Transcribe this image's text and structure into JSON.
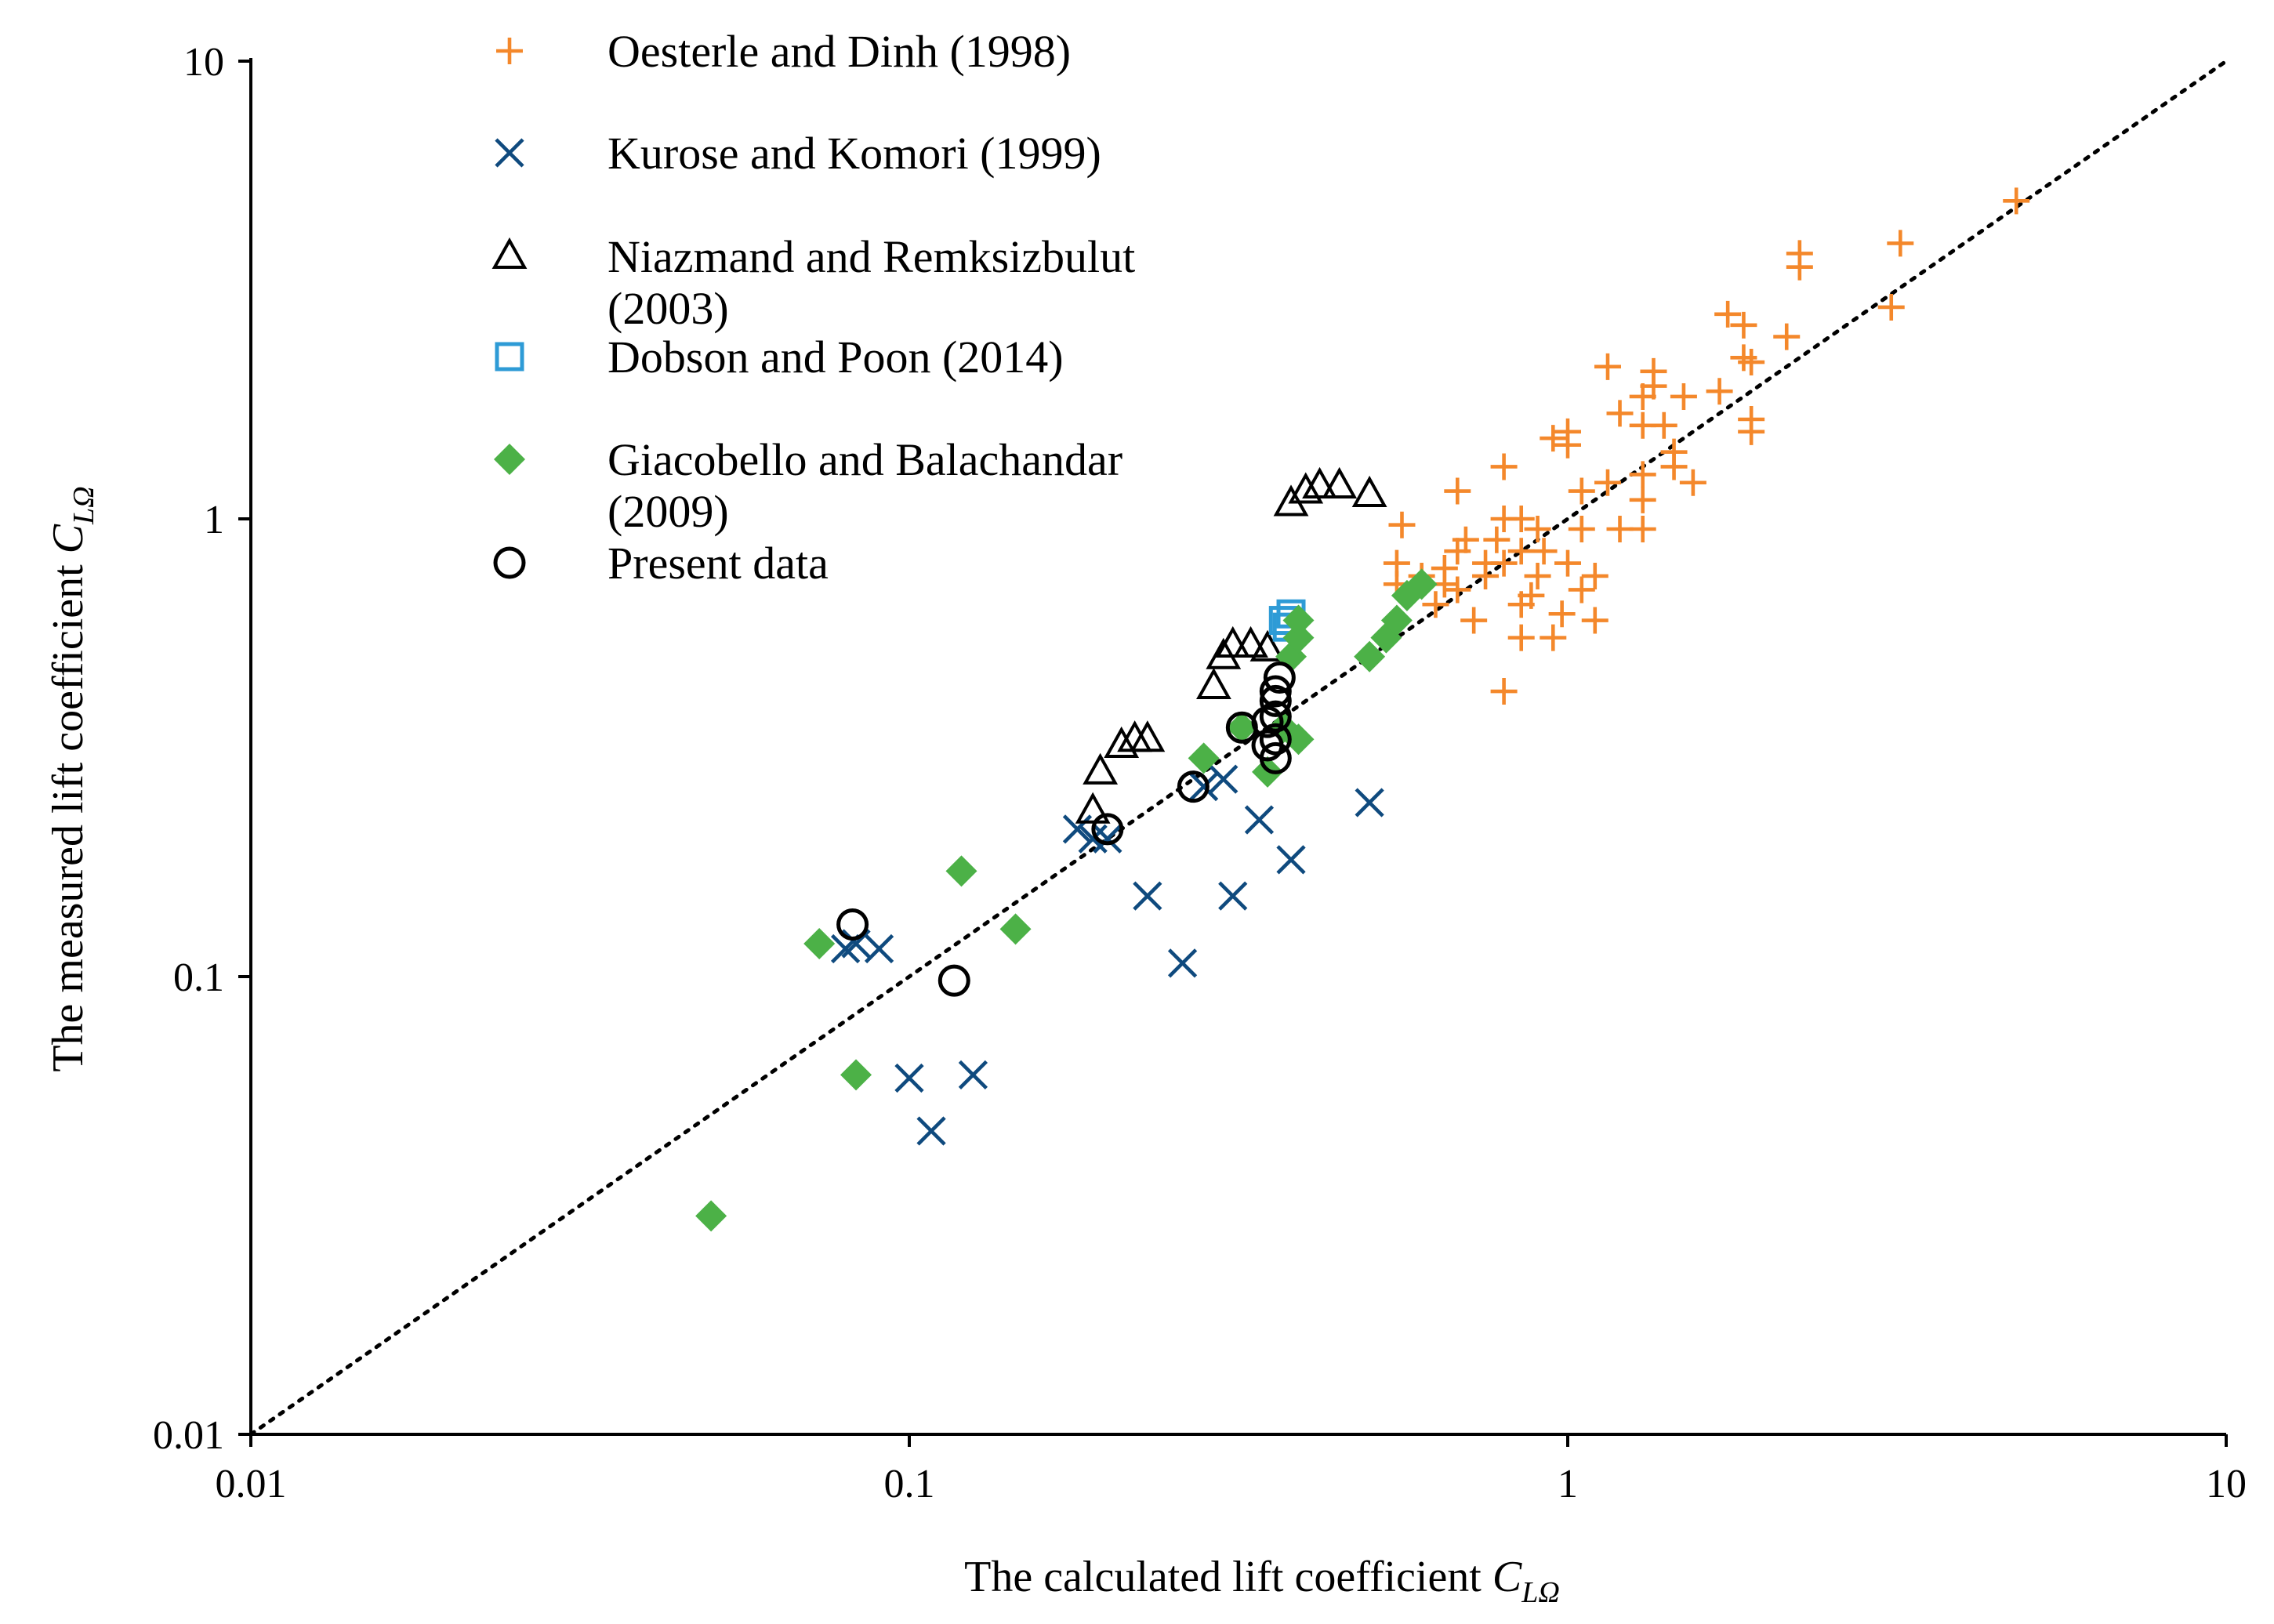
{
  "chart_data": {
    "type": "scatter",
    "xscale": "log",
    "yscale": "log",
    "xlim": [
      0.01,
      10
    ],
    "ylim": [
      0.01,
      10
    ],
    "x_ticks": [
      "0.01",
      "0.1",
      "1",
      "10"
    ],
    "y_ticks": [
      "0.01",
      "0.1",
      "1",
      "10"
    ],
    "xlabel_main": "The calculated  lift coefficient ",
    "xlabel_symbol": "C",
    "xlabel_sub": "LΩ",
    "ylabel_main": "The measured lift coefficient ",
    "ylabel_symbol": "C",
    "ylabel_sub": "LΩ",
    "reference_line": "y = x (dotted)",
    "colors": {
      "orange": "#F4882B",
      "navy": "#0F4A7E",
      "black": "#000000",
      "cyan": "#2E9BD6",
      "green": "#4CB147"
    },
    "series": [
      {
        "name": "Oesterle and Dinh (1998)",
        "marker": "plus",
        "color": "#F4882B",
        "points": [
          [
            4.8,
            4.95
          ],
          [
            3.2,
            4.0
          ],
          [
            3.1,
            2.9
          ],
          [
            2.25,
            3.55
          ],
          [
            2.25,
            3.8
          ],
          [
            2.15,
            2.5
          ],
          [
            1.75,
            2.8
          ],
          [
            1.85,
            2.65
          ],
          [
            1.7,
            1.9
          ],
          [
            1.85,
            2.25
          ],
          [
            1.9,
            2.2
          ],
          [
            1.9,
            1.55
          ],
          [
            1.9,
            1.65
          ],
          [
            1.5,
            1.85
          ],
          [
            1.55,
            1.2
          ],
          [
            1.45,
            1.4
          ],
          [
            1.45,
            1.3
          ],
          [
            1.4,
            1.6
          ],
          [
            1.35,
            2.1
          ],
          [
            1.35,
            1.95
          ],
          [
            1.3,
            1.6
          ],
          [
            1.3,
            1.85
          ],
          [
            1.3,
            1.25
          ],
          [
            1.3,
            1.1
          ],
          [
            1.3,
            0.95
          ],
          [
            1.2,
            1.7
          ],
          [
            1.2,
            0.95
          ],
          [
            1.15,
            1.2
          ],
          [
            1.15,
            2.15
          ],
          [
            1.05,
            1.15
          ],
          [
            1.05,
            0.95
          ],
          [
            1.0,
            1.45
          ],
          [
            1.0,
            1.55
          ],
          [
            0.95,
            1.5
          ],
          [
            1.1,
            0.75
          ],
          [
            1.05,
            0.7
          ],
          [
            1.1,
            0.6
          ],
          [
            1.0,
            0.8
          ],
          [
            0.98,
            0.62
          ],
          [
            0.95,
            0.55
          ],
          [
            0.92,
            0.85
          ],
          [
            0.9,
            0.75
          ],
          [
            0.88,
            0.68
          ],
          [
            0.85,
            0.65
          ],
          [
            0.85,
            0.55
          ],
          [
            0.9,
            0.95
          ],
          [
            0.85,
            1.0
          ],
          [
            0.85,
            0.85
          ],
          [
            0.8,
            1.0
          ],
          [
            0.8,
            1.3
          ],
          [
            0.8,
            0.8
          ],
          [
            0.78,
            0.9
          ],
          [
            0.75,
            0.8
          ],
          [
            0.75,
            0.75
          ],
          [
            0.72,
            0.6
          ],
          [
            0.7,
            0.9
          ],
          [
            0.68,
            0.85
          ],
          [
            0.68,
            0.7
          ],
          [
            0.65,
            0.78
          ],
          [
            0.65,
            0.72
          ],
          [
            0.63,
            0.65
          ],
          [
            0.6,
            0.75
          ],
          [
            0.56,
            0.97
          ],
          [
            0.55,
            0.8
          ],
          [
            0.55,
            0.72
          ],
          [
            0.68,
            1.15
          ],
          [
            0.8,
            0.42
          ]
        ]
      },
      {
        "name": "Kurose and Komori (1999)",
        "marker": "x",
        "color": "#0F4A7E",
        "points": [
          [
            0.08,
            0.115
          ],
          [
            0.083,
            0.118
          ],
          [
            0.09,
            0.115
          ],
          [
            0.1,
            0.06
          ],
          [
            0.108,
            0.046
          ],
          [
            0.125,
            0.061
          ],
          [
            0.18,
            0.21
          ],
          [
            0.19,
            0.2
          ],
          [
            0.2,
            0.2
          ],
          [
            0.23,
            0.15
          ],
          [
            0.26,
            0.107
          ],
          [
            0.28,
            0.26
          ],
          [
            0.3,
            0.27
          ],
          [
            0.31,
            0.15
          ],
          [
            0.34,
            0.22
          ],
          [
            0.38,
            0.18
          ],
          [
            0.5,
            0.24
          ]
        ]
      },
      {
        "name": "Niazmand and Remksizbulut (2003)",
        "marker": "triangle",
        "color": "#000000",
        "points": [
          [
            0.19,
            0.23
          ],
          [
            0.195,
            0.28
          ],
          [
            0.21,
            0.32
          ],
          [
            0.22,
            0.33
          ],
          [
            0.23,
            0.33
          ],
          [
            0.29,
            0.43
          ],
          [
            0.3,
            0.5
          ],
          [
            0.31,
            0.53
          ],
          [
            0.33,
            0.53
          ],
          [
            0.35,
            0.52
          ],
          [
            0.38,
            1.08
          ],
          [
            0.4,
            1.15
          ],
          [
            0.42,
            1.18
          ],
          [
            0.45,
            1.18
          ],
          [
            0.5,
            1.13
          ]
        ]
      },
      {
        "name": "Dobson and Poon (2014)",
        "marker": "square",
        "color": "#2E9BD6",
        "points": [
          [
            0.37,
            0.6
          ],
          [
            0.38,
            0.62
          ],
          [
            0.375,
            0.58
          ]
        ]
      },
      {
        "name": "Giacobello and Balachandar (2009)",
        "marker": "diamond",
        "color": "#4CB147",
        "points": [
          [
            0.05,
            0.03
          ],
          [
            0.073,
            0.118
          ],
          [
            0.083,
            0.061
          ],
          [
            0.12,
            0.17
          ],
          [
            0.145,
            0.127
          ],
          [
            0.28,
            0.3
          ],
          [
            0.32,
            0.35
          ],
          [
            0.35,
            0.28
          ],
          [
            0.37,
            0.35
          ],
          [
            0.39,
            0.33
          ],
          [
            0.38,
            0.5
          ],
          [
            0.39,
            0.55
          ],
          [
            0.39,
            0.6
          ],
          [
            0.5,
            0.5
          ],
          [
            0.53,
            0.55
          ],
          [
            0.55,
            0.6
          ],
          [
            0.57,
            0.68
          ],
          [
            0.6,
            0.72
          ]
        ]
      },
      {
        "name": "Present data",
        "marker": "circle",
        "color": "#000000",
        "points": [
          [
            0.082,
            0.13
          ],
          [
            0.117,
            0.098
          ],
          [
            0.2,
            0.21
          ],
          [
            0.27,
            0.26
          ],
          [
            0.32,
            0.35
          ],
          [
            0.35,
            0.32
          ],
          [
            0.35,
            0.36
          ],
          [
            0.36,
            0.37
          ],
          [
            0.36,
            0.4
          ],
          [
            0.36,
            0.42
          ],
          [
            0.365,
            0.45
          ],
          [
            0.36,
            0.33
          ],
          [
            0.36,
            0.3
          ]
        ]
      }
    ],
    "legend": [
      {
        "marker": "plus",
        "color": "#F4882B",
        "line1": "Oesterle and Dinh (1998)",
        "line2": ""
      },
      {
        "marker": "x",
        "color": "#0F4A7E",
        "line1": "Kurose and Komori (1999)",
        "line2": ""
      },
      {
        "marker": "triangle",
        "color": "#000000",
        "line1": "Niazmand and Remksizbulut",
        "line2": "(2003)"
      },
      {
        "marker": "square",
        "color": "#2E9BD6",
        "line1": "Dobson and Poon (2014)",
        "line2": ""
      },
      {
        "marker": "diamond",
        "color": "#4CB147",
        "line1": "Giacobello and Balachandar",
        "line2": "(2009)"
      },
      {
        "marker": "circle",
        "color": "#000000",
        "line1": "Present data",
        "line2": ""
      }
    ]
  }
}
